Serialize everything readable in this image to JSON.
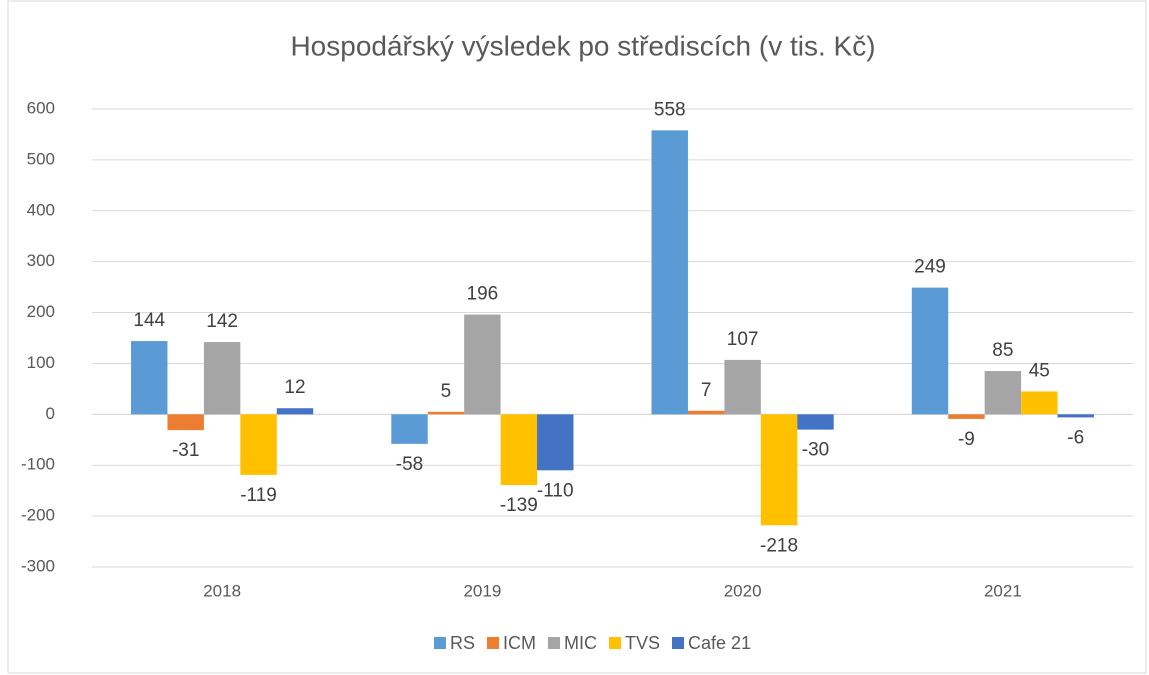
{
  "chart_data": {
    "type": "bar",
    "title": "Hospodářský výsledek po střediscích (v tis. Kč)",
    "categories": [
      "2018",
      "2019",
      "2020",
      "2021"
    ],
    "series": [
      {
        "name": "RS",
        "color": "#5b9bd5",
        "values": [
          144,
          -58,
          558,
          249
        ]
      },
      {
        "name": "ICM",
        "color": "#ed7d31",
        "values": [
          -31,
          5,
          7,
          -9
        ]
      },
      {
        "name": "MIC",
        "color": "#a5a5a5",
        "values": [
          142,
          196,
          107,
          85
        ]
      },
      {
        "name": "TVS",
        "color": "#ffc000",
        "values": [
          -119,
          -139,
          -218,
          45
        ]
      },
      {
        "name": "Cafe 21",
        "color": "#4472c4",
        "values": [
          12,
          -110,
          -30,
          -6
        ]
      }
    ],
    "ylim": [
      -300,
      600
    ],
    "yticks": [
      -300,
      -200,
      -100,
      0,
      100,
      200,
      300,
      400,
      500,
      600
    ],
    "grid": true,
    "legend": "bottom"
  }
}
